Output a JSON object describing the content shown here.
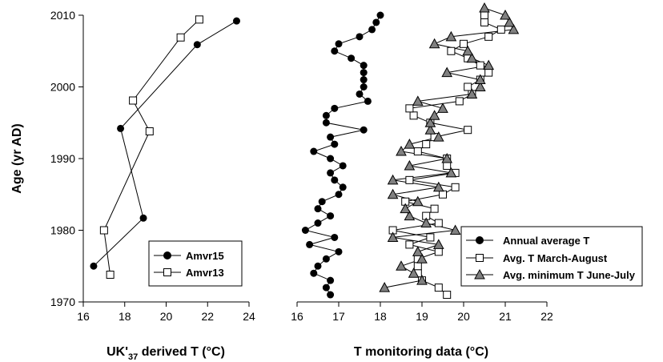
{
  "chart_data": [
    {
      "type": "line",
      "xlabel": "UK'37 derived T (°C)",
      "xlabel_parts": {
        "pre": "UK'",
        "sub": "37",
        "post": " derived T (°C)"
      },
      "ylabel": "Age (yr AD)",
      "xlim": [
        16,
        24
      ],
      "ylim": [
        1970,
        2010
      ],
      "xticks": [
        16,
        18,
        20,
        22,
        24
      ],
      "yticks": [
        1970,
        1980,
        1990,
        2000,
        2010
      ],
      "grid": false,
      "legend_position": "bottom-right",
      "series": [
        {
          "name": "Amvr15",
          "marker": "circle",
          "points": [
            [
              16.5,
              1975.0
            ],
            [
              18.9,
              1981.7
            ],
            [
              17.8,
              1994.2
            ],
            [
              21.5,
              2005.9
            ],
            [
              23.4,
              2009.2
            ]
          ]
        },
        {
          "name": "Amvr13",
          "marker": "square",
          "points": [
            [
              17.3,
              1973.8
            ],
            [
              17.0,
              1980.0
            ],
            [
              19.2,
              1993.8
            ],
            [
              18.4,
              1998.1
            ],
            [
              20.7,
              2006.9
            ],
            [
              21.6,
              2009.4
            ]
          ]
        }
      ]
    },
    {
      "type": "line",
      "xlabel": "T monitoring data (°C)",
      "xlim": [
        16,
        22
      ],
      "ylim": [
        1970,
        2010
      ],
      "xticks": [
        16,
        17,
        18,
        19,
        20,
        21,
        22
      ],
      "yticks": [
        1970,
        1980,
        1990,
        2000,
        2010
      ],
      "grid": false,
      "legend_position": "bottom-right",
      "series": [
        {
          "name": "Annual average T",
          "marker": "circle",
          "points": [
            [
              16.8,
              1971
            ],
            [
              16.7,
              1972
            ],
            [
              16.8,
              1973
            ],
            [
              16.4,
              1974
            ],
            [
              16.5,
              1975
            ],
            [
              16.7,
              1976
            ],
            [
              17.0,
              1977
            ],
            [
              16.3,
              1978
            ],
            [
              16.9,
              1979
            ],
            [
              16.2,
              1980
            ],
            [
              16.5,
              1981
            ],
            [
              16.8,
              1982
            ],
            [
              16.5,
              1983
            ],
            [
              16.6,
              1984
            ],
            [
              17.0,
              1985
            ],
            [
              17.1,
              1986
            ],
            [
              16.9,
              1987
            ],
            [
              16.8,
              1988
            ],
            [
              17.1,
              1989
            ],
            [
              16.8,
              1990
            ],
            [
              16.4,
              1991
            ],
            [
              16.9,
              1992
            ],
            [
              16.8,
              1993
            ],
            [
              17.6,
              1994
            ],
            [
              16.7,
              1995
            ],
            [
              16.7,
              1996
            ],
            [
              16.9,
              1997
            ],
            [
              17.7,
              1998
            ],
            [
              17.5,
              1999
            ],
            [
              17.6,
              2000
            ],
            [
              17.6,
              2001
            ],
            [
              17.6,
              2002
            ],
            [
              17.6,
              2003
            ],
            [
              17.3,
              2004
            ],
            [
              16.9,
              2005
            ],
            [
              17.0,
              2006
            ],
            [
              17.5,
              2007
            ],
            [
              17.8,
              2008
            ],
            [
              17.9,
              2009
            ],
            [
              18.0,
              2010
            ]
          ]
        },
        {
          "name": "Avg. T March-August",
          "marker": "square",
          "points": [
            [
              19.6,
              1971
            ],
            [
              19.4,
              1972
            ],
            [
              19.0,
              1973
            ],
            [
              18.9,
              1974
            ],
            [
              18.9,
              1975
            ],
            [
              18.9,
              1976
            ],
            [
              19.4,
              1977
            ],
            [
              18.7,
              1978
            ],
            [
              19.2,
              1979
            ],
            [
              18.3,
              1980
            ],
            [
              19.4,
              1981
            ],
            [
              19.1,
              1982
            ],
            [
              19.3,
              1983
            ],
            [
              18.6,
              1984
            ],
            [
              19.5,
              1985
            ],
            [
              19.8,
              1986
            ],
            [
              18.7,
              1987
            ],
            [
              19.8,
              1988
            ],
            [
              19.6,
              1989
            ],
            [
              19.6,
              1990
            ],
            [
              18.9,
              1991
            ],
            [
              19.1,
              1992
            ],
            [
              19.3,
              1993
            ],
            [
              20.1,
              1994
            ],
            [
              19.2,
              1995
            ],
            [
              18.8,
              1996
            ],
            [
              18.7,
              1997
            ],
            [
              19.9,
              1998
            ],
            [
              20.2,
              1999
            ],
            [
              20.1,
              2000
            ],
            [
              20.4,
              2001
            ],
            [
              20.6,
              2002
            ],
            [
              20.4,
              2003
            ],
            [
              20.1,
              2004
            ],
            [
              19.7,
              2005
            ],
            [
              20.0,
              2006
            ],
            [
              20.6,
              2007
            ],
            [
              20.9,
              2008
            ],
            [
              20.5,
              2009
            ],
            [
              20.5,
              2010
            ]
          ]
        },
        {
          "name": "Avg. minimum T June-July",
          "marker": "triangle",
          "points": [
            [
              18.1,
              1972
            ],
            [
              19.0,
              1973
            ],
            [
              18.8,
              1974
            ],
            [
              18.5,
              1975
            ],
            [
              19.0,
              1976
            ],
            [
              18.9,
              1977
            ],
            [
              19.4,
              1978
            ],
            [
              18.3,
              1979
            ],
            [
              19.8,
              1980
            ],
            [
              19.1,
              1981
            ],
            [
              18.7,
              1982
            ],
            [
              18.6,
              1983
            ],
            [
              18.9,
              1984
            ],
            [
              18.3,
              1985
            ],
            [
              19.4,
              1986
            ],
            [
              18.3,
              1987
            ],
            [
              19.7,
              1988
            ],
            [
              18.7,
              1989
            ],
            [
              19.6,
              1990
            ],
            [
              18.5,
              1991
            ],
            [
              18.7,
              1992
            ],
            [
              19.4,
              1993
            ],
            [
              19.2,
              1994
            ],
            [
              19.2,
              1995
            ],
            [
              19.3,
              1996
            ],
            [
              19.5,
              1997
            ],
            [
              18.9,
              1998
            ],
            [
              20.2,
              1999
            ],
            [
              20.4,
              2000
            ],
            [
              20.4,
              2001
            ],
            [
              19.6,
              2002
            ],
            [
              20.6,
              2003
            ],
            [
              20.2,
              2004
            ],
            [
              20.1,
              2005
            ],
            [
              19.3,
              2006
            ],
            [
              19.7,
              2007
            ],
            [
              21.2,
              2008
            ],
            [
              21.1,
              2009
            ],
            [
              21.0,
              2010
            ],
            [
              20.5,
              2011
            ]
          ]
        }
      ]
    }
  ]
}
